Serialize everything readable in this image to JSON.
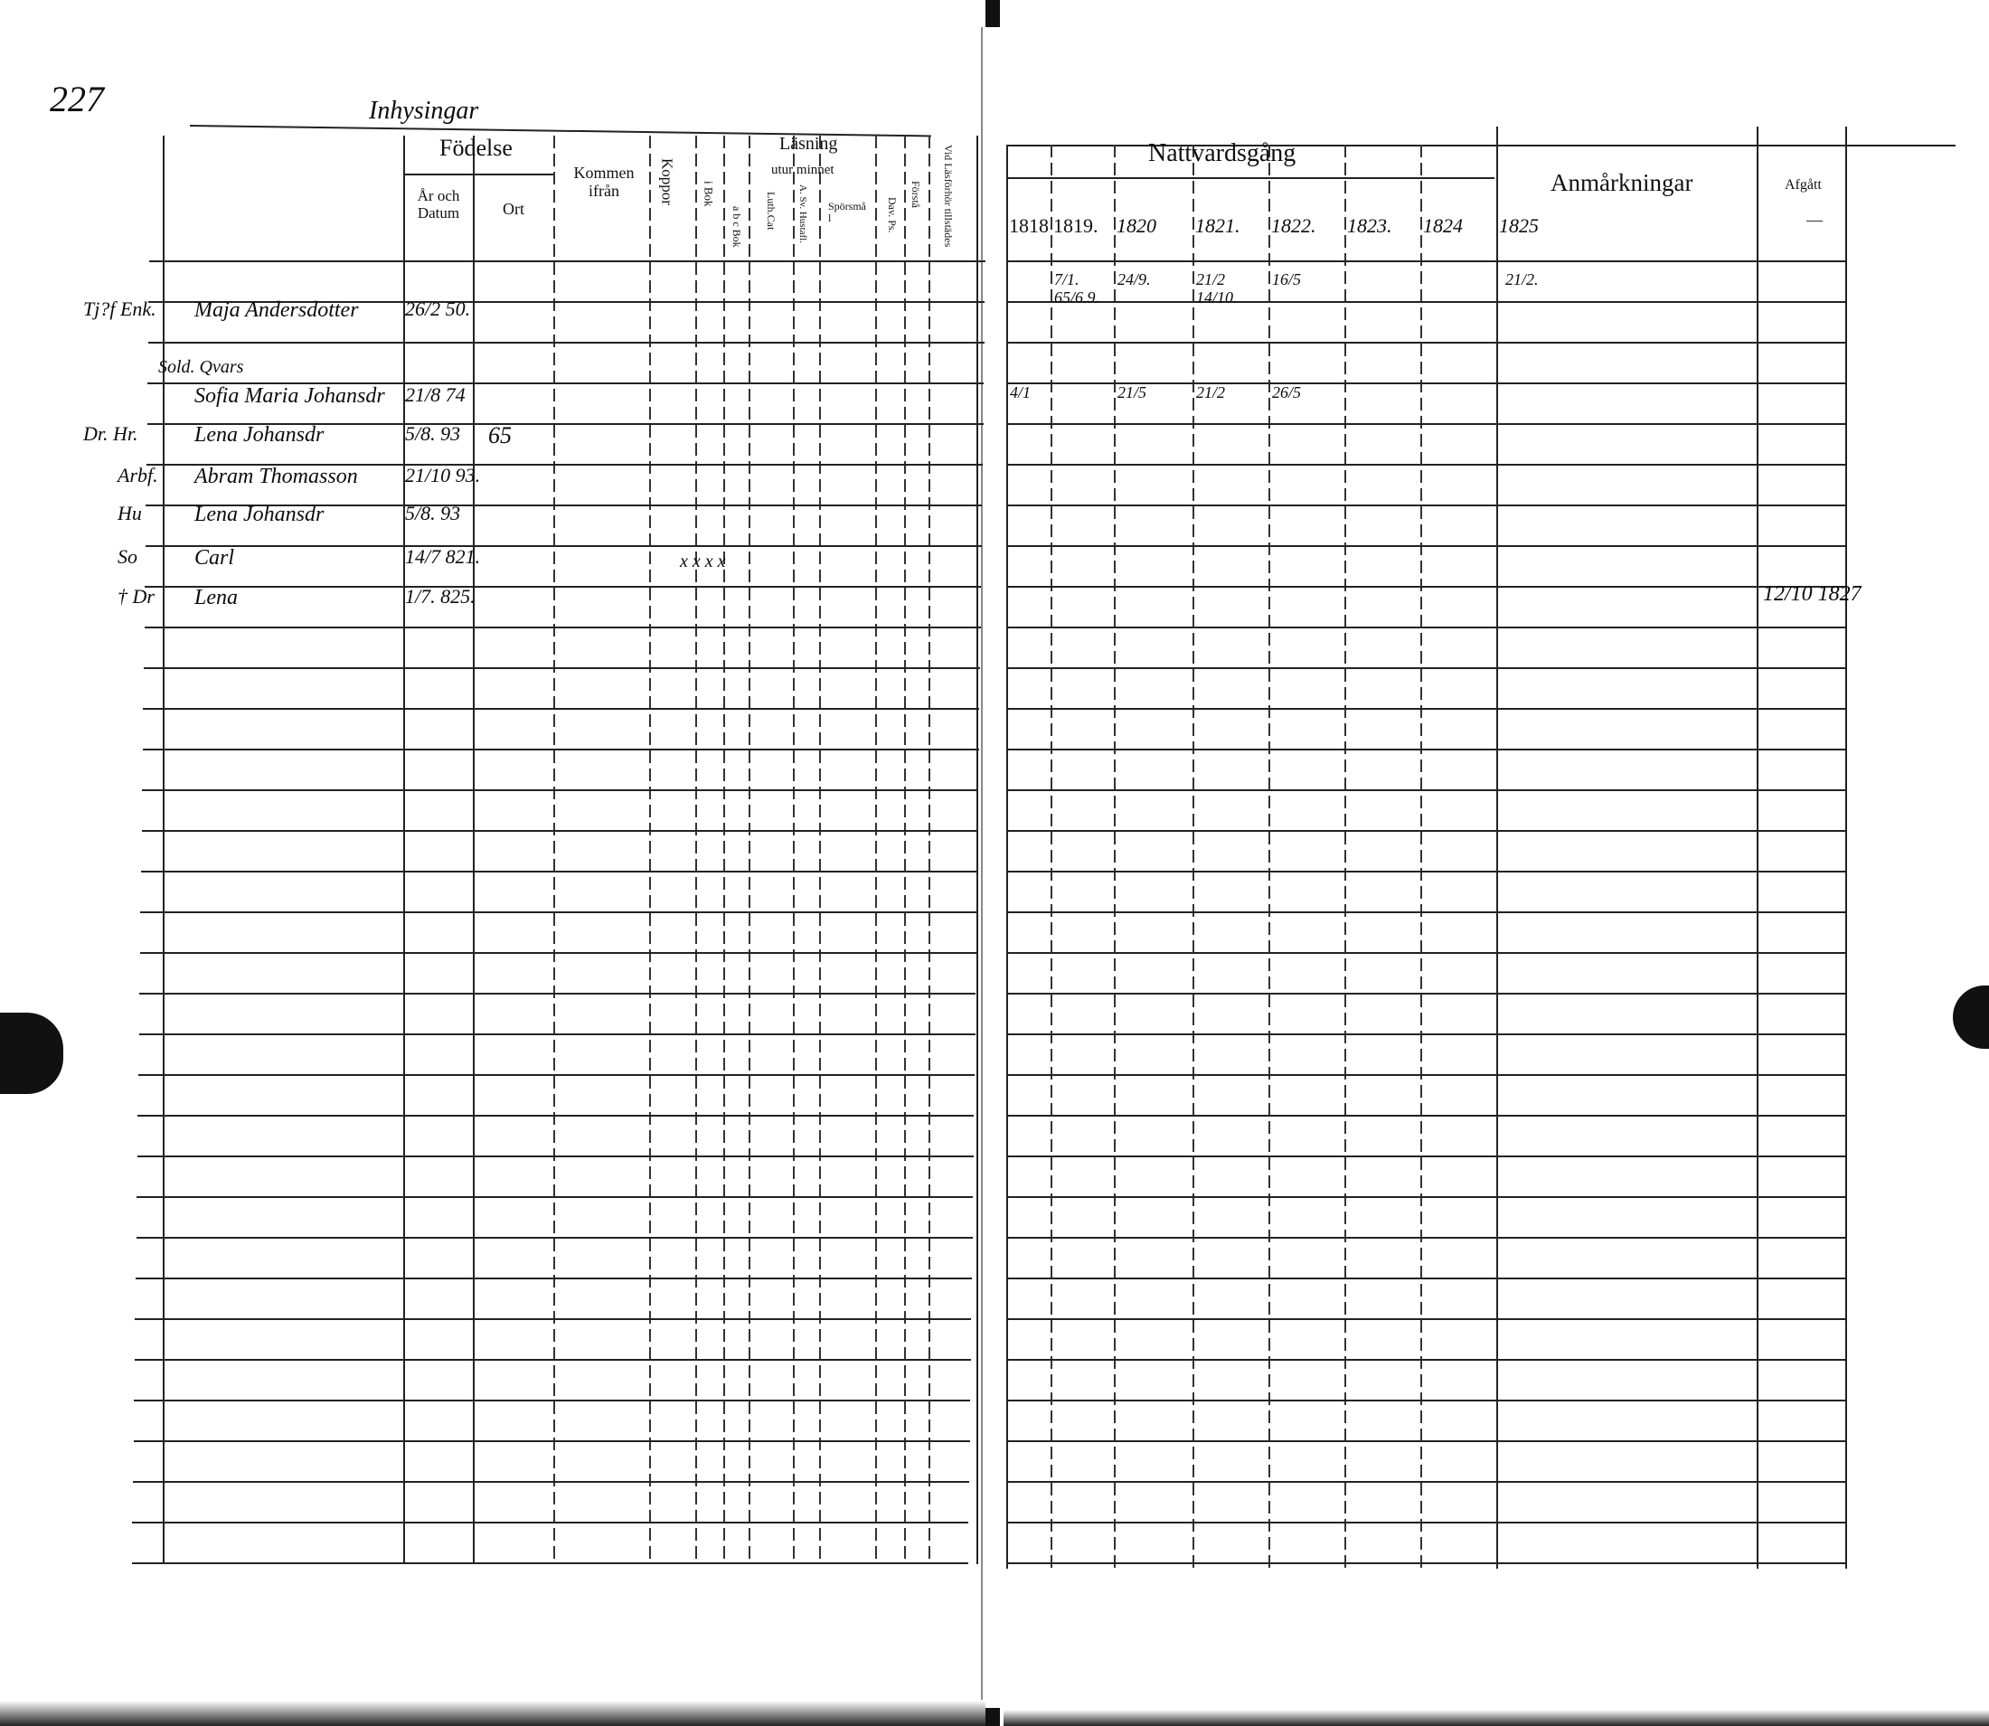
{
  "left_page": {
    "page_number": "227",
    "section_title": "Inhysingar",
    "headers": {
      "fodelse": "Födelse",
      "ar_och_datum": "År och Datum",
      "ort": "Ort",
      "kommen_ifran": "Kommen ifrån",
      "koppor": "Koppor",
      "lasning": "Läsning",
      "utur_minnet": "utur minnet",
      "i_bok": "i Bok",
      "abc_bok": "a b c Bok",
      "luth_cat": "Luth.Cat",
      "sv_hustafla": "A. Sv. Hustafl.",
      "sporsmal": "Spörsmål",
      "dav_ps": "Dav. Ps.",
      "forstand": "Förstå",
      "vid_lasforhor": "Vid Läsförhör tillstädes"
    },
    "entries": [
      {
        "prefix": "Tj?f Enk.",
        "name": "Maja Andersdotter",
        "date": "26/2 50."
      },
      {
        "prefix": "Sold. Qvars",
        "name": "Sofia Maria Johansdr",
        "date": "21/8 74"
      },
      {
        "prefix": "Dr. Hr.",
        "name": "Lena Johansdr",
        "date": "5/8. 93",
        "ort": "65"
      },
      {
        "prefix": "Arbf.",
        "name": "Abram Thomasson",
        "date": "21/10 93."
      },
      {
        "prefix": "Hu",
        "name": "Lena Johansdr",
        "date": "5/8. 93"
      },
      {
        "prefix": "So",
        "name": "Carl",
        "date": "14/7 821.",
        "lasning_marks": "x  x  x x"
      },
      {
        "prefix": "† Dr",
        "name": "Lena",
        "date": "1/7. 825."
      }
    ]
  },
  "right_page": {
    "headers": {
      "nattvardsgang": "Nattvardsgång",
      "years": [
        "1818",
        "1819.",
        "1820",
        "1821.",
        "1822.",
        "1823.",
        "1824",
        "1825"
      ],
      "anmarkningar": "Anmårkningar",
      "afgatt": "Afgått",
      "afgatt_dash": "—"
    },
    "entries": [
      {
        "y1819": "7/1. 65/6.9.",
        "y1820": "24/9.",
        "y1821": "21/2 14/10.",
        "y1822": "16/5",
        "y1825": "21/2."
      },
      {
        "y1818": "4/1",
        "y1820": "21/5",
        "y1821": "21/2",
        "y1822": "26/5"
      },
      {
        "afgatt": "12/10 1827"
      }
    ]
  }
}
